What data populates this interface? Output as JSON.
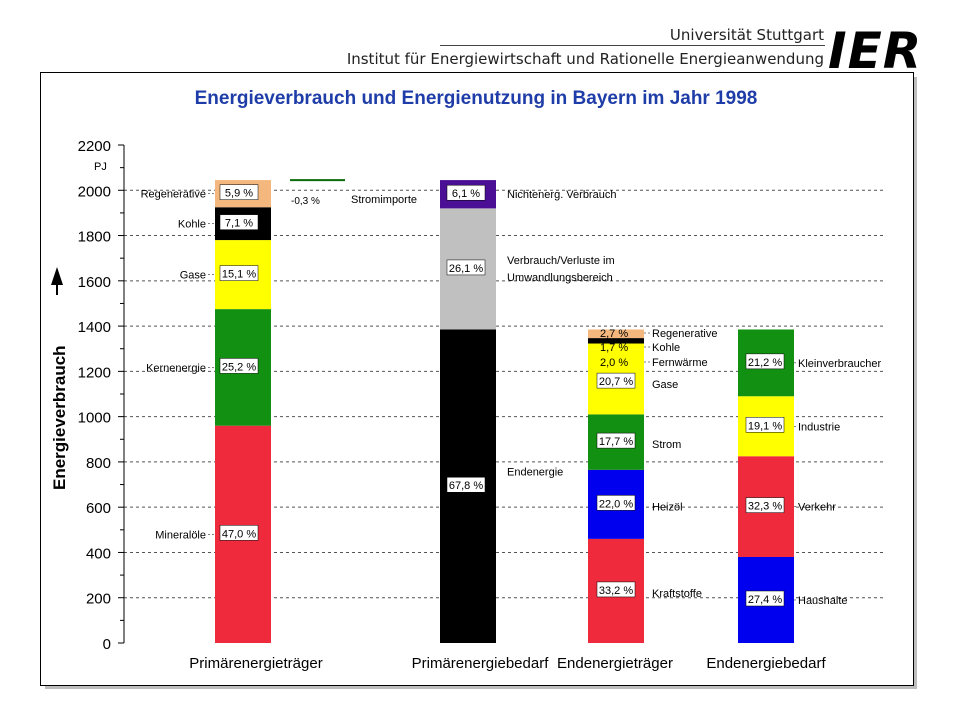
{
  "header": {
    "university": "Universität Stuttgart",
    "institute": "Institut für Energiewirtschaft und Rationelle Energieanwendung",
    "logo": "IER"
  },
  "chart_data": {
    "type": "bar",
    "title": "Energieverbrauch und Energienutzung in Bayern im Jahr 1998",
    "ylabel": "Energieverbrauch",
    "yunit": "PJ",
    "ylim": [
      0,
      2200
    ],
    "yticks": [
      0,
      200,
      400,
      600,
      800,
      1000,
      1200,
      1400,
      1600,
      1800,
      2000,
      2200
    ],
    "grid": true,
    "categories": [
      "Primärenergieträger",
      "Primärenergiebedarf",
      "Endenergieträger",
      "Endenergiebedarf"
    ],
    "stacks": [
      {
        "category": "Primärenergieträger",
        "segments": [
          {
            "name": "Mineralöle",
            "value": 960,
            "pct": "47,0 %",
            "color": "#ee2a3c"
          },
          {
            "name": "Kernenergie",
            "value": 515,
            "pct": "25,2 %",
            "color": "#129012"
          },
          {
            "name": "Gase",
            "value": 305,
            "pct": "15,1 %",
            "color": "#ffff00"
          },
          {
            "name": "Kohle",
            "value": 145,
            "pct": "7,1 %",
            "color": "#000000"
          },
          {
            "name": "Regenerative",
            "value": 120,
            "pct": "5,9 %",
            "color": "#f4b87e"
          }
        ]
      },
      {
        "category": "Primärenergiebedarf",
        "segments": [
          {
            "name": "Endenergie",
            "value": 1385,
            "pct": "67,8 %",
            "color": "#000000"
          },
          {
            "name": "Verbrauch/Verluste im Umwandlungsbereich",
            "value": 535,
            "pct": "26,1 %",
            "color": "#c0c0c0"
          },
          {
            "name": "Nichtenerg. Verbrauch",
            "value": 125,
            "pct": "6,1 %",
            "color": "#4b0f96"
          }
        ]
      },
      {
        "category": "Endenergieträger",
        "segments": [
          {
            "name": "Kraftstoffe",
            "value": 460,
            "pct": "33,2 %",
            "color": "#ee2a3c"
          },
          {
            "name": "Heizöl",
            "value": 305,
            "pct": "22,0 %",
            "color": "#0000ee"
          },
          {
            "name": "Strom",
            "value": 245,
            "pct": "17,7 %",
            "color": "#129012"
          },
          {
            "name": "Gase",
            "value": 285,
            "pct": "20,7 %",
            "color": "#ffff00"
          },
          {
            "name": "Fernwärme",
            "value": 28,
            "pct": "2,0 %",
            "color": "#ffff00"
          },
          {
            "name": "Kohle",
            "value": 24,
            "pct": "1,7 %",
            "color": "#000000"
          },
          {
            "name": "Regenerative",
            "value": 38,
            "pct": "2,7 %",
            "color": "#f4b87e"
          }
        ]
      },
      {
        "category": "Endenergiebedarf",
        "segments": [
          {
            "name": "Haushalte",
            "value": 380,
            "pct": "27,4 %",
            "color": "#0000ee"
          },
          {
            "name": "Verkehr",
            "value": 445,
            "pct": "32,3 %",
            "color": "#ee2a3c"
          },
          {
            "name": "Industrie",
            "value": 265,
            "pct": "19,1 %",
            "color": "#ffff00"
          },
          {
            "name": "Kleinverbraucher",
            "value": 295,
            "pct": "21,2 %",
            "color": "#129012"
          }
        ]
      }
    ],
    "annotations": {
      "stromimporte_label": "Stromimporte",
      "stromimporte_pct": "-0,3 %",
      "stromimporte_value": 2045
    }
  }
}
